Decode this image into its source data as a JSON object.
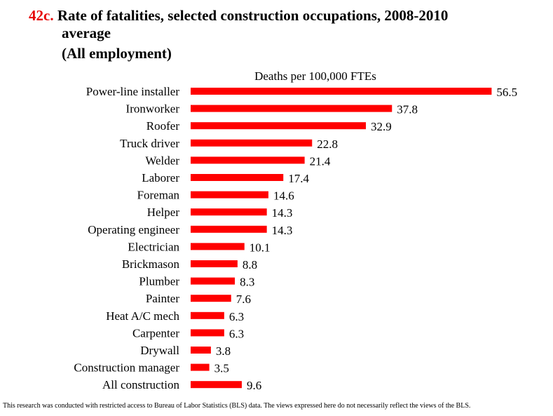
{
  "title": {
    "number": "42c.",
    "text_line1": "Rate of fatalities, selected construction occupations, 2008-2010",
    "text_line2": "average",
    "subtitle": "(All employment)"
  },
  "footer": "This research was conducted with restricted access to Bureau of Labor Statistics (BLS) data.  The views expressed here do not necessarily reflect the views of the BLS.",
  "colors": {
    "bar": "#ff0000",
    "title_number": "#e60000"
  },
  "chart_data": {
    "type": "bar",
    "orientation": "horizontal",
    "units_label": "Deaths per 100,000 FTEs",
    "categories": [
      "Power-line installer",
      "Ironworker",
      "Roofer",
      "Truck driver",
      "Welder",
      "Laborer",
      "Foreman",
      "Helper",
      "Operating engineer",
      "Electrician",
      "Brickmason",
      "Plumber",
      "Painter",
      "Heat A/C mech",
      "Carpenter",
      "Drywall",
      "Construction manager",
      "All construction"
    ],
    "values": [
      56.5,
      37.8,
      32.9,
      22.8,
      21.4,
      17.4,
      14.6,
      14.3,
      14.3,
      10.1,
      8.8,
      8.3,
      7.6,
      6.3,
      6.3,
      3.8,
      3.5,
      9.6
    ],
    "value_labels": [
      "56.5",
      "37.8",
      "32.9",
      "22.8",
      "21.4",
      "17.4",
      "14.6",
      "14.3",
      "14.3",
      "10.1",
      "8.8",
      "8.3",
      "7.6",
      "6.3",
      "6.3",
      "3.8",
      "3.5",
      "9.6"
    ],
    "grid": false,
    "legend": "none"
  }
}
